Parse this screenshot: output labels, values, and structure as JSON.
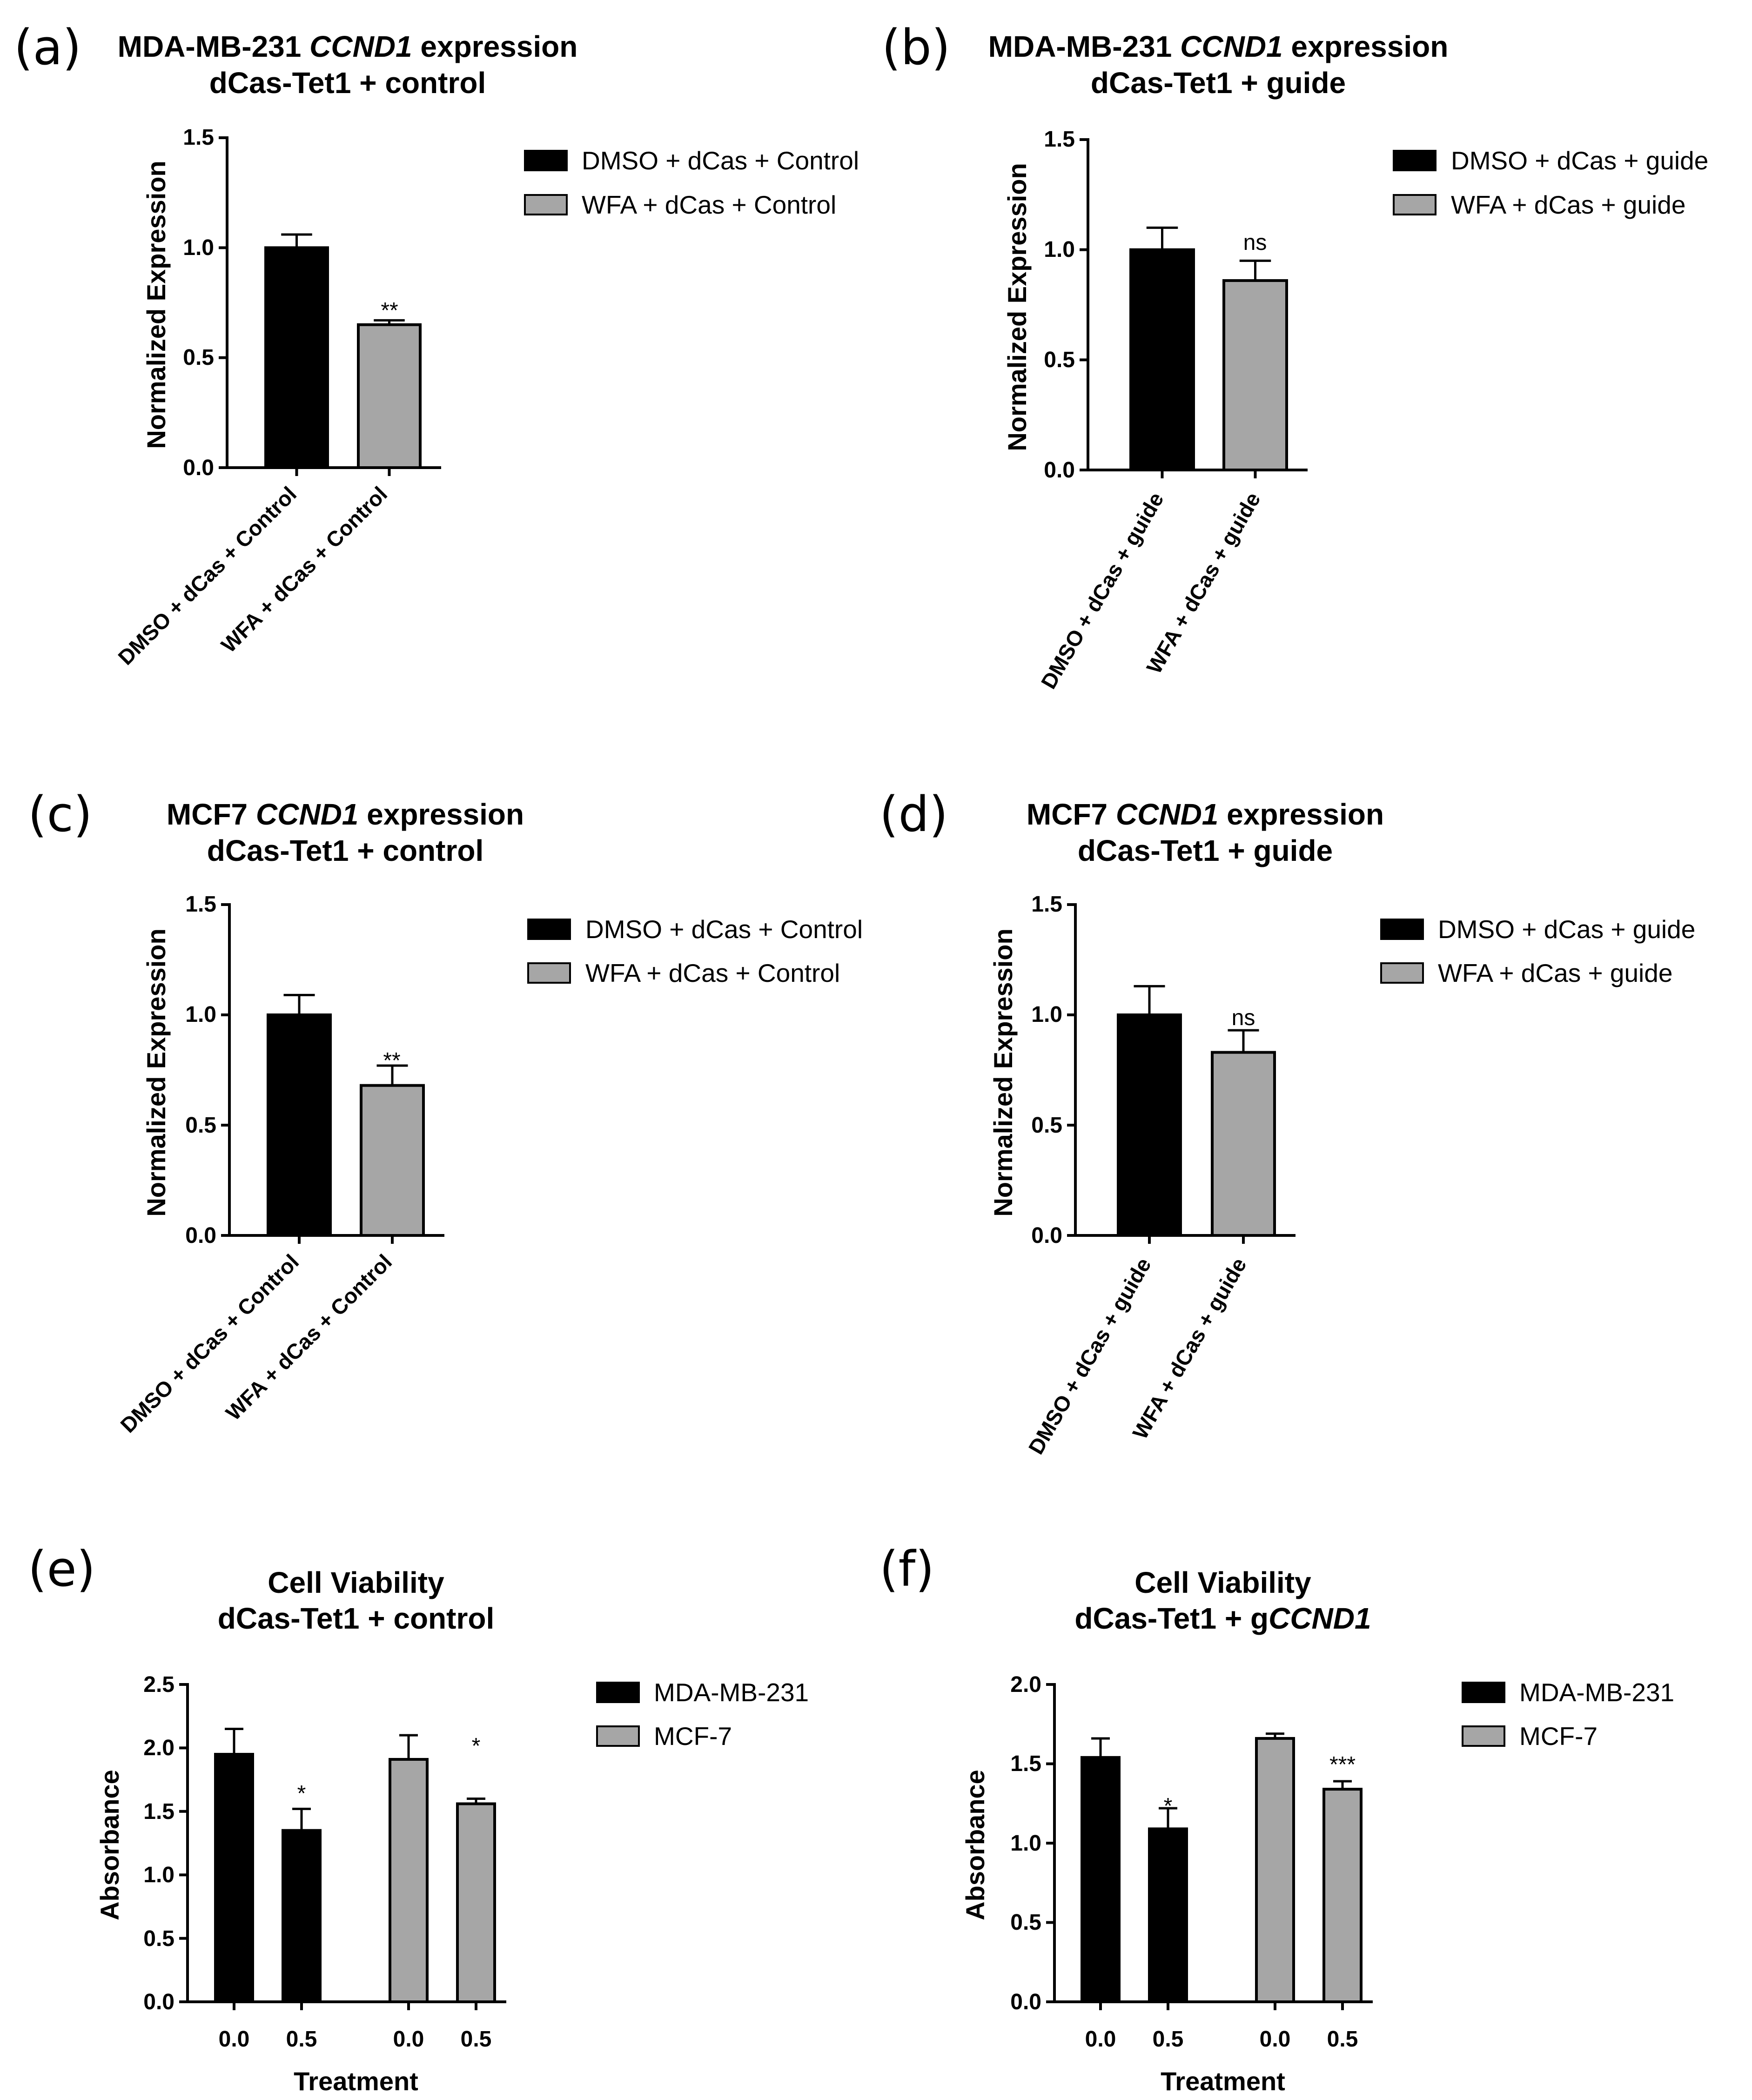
{
  "colors": {
    "dmso": "#000000",
    "wfa": "#a6a6a6",
    "outline": "#000000"
  },
  "panels": [
    {
      "letter": "(a)",
      "title_line1": {
        "before": "MDA-MB-231 ",
        "italic": "CCND1",
        "after": " expression"
      },
      "title_line2": "dCas-Tet1 + control",
      "ylabel": "Normalized Expression",
      "legend": [
        "DMSO + dCas + Control",
        "WFA + dCas + Control"
      ],
      "tick_labels": [
        "0.0",
        "0.5",
        "1.0",
        "1.5"
      ],
      "category_labels": [
        "DMSO + dCas + Control",
        "WFA + dCas + Control"
      ],
      "significance": [
        "",
        "**"
      ]
    },
    {
      "letter": "(b)",
      "title_line1": {
        "before": "MDA-MB-231 ",
        "italic": "CCND1",
        "after": " expression"
      },
      "title_line2": "dCas-Tet1 + guide",
      "ylabel": "Normalized Expression",
      "legend": [
        "DMSO + dCas + guide",
        "WFA + dCas + guide"
      ],
      "tick_labels": [
        "0.0",
        "0.5",
        "1.0",
        "1.5"
      ],
      "category_labels": [
        "DMSO + dCas + guide",
        "WFA + dCas + guide"
      ],
      "significance": [
        "",
        "ns"
      ]
    },
    {
      "letter": "(c)",
      "title_line1": {
        "before": "MCF7 ",
        "italic": "CCND1",
        "after": " expression"
      },
      "title_line2": "dCas-Tet1 + control",
      "ylabel": "Normalized Expression",
      "legend": [
        "DMSO + dCas + Control",
        "WFA + dCas + Control"
      ],
      "tick_labels": [
        "0.0",
        "0.5",
        "1.0",
        "1.5"
      ],
      "category_labels": [
        "DMSO + dCas + Control",
        "WFA + dCas + Control"
      ],
      "significance": [
        "",
        "**"
      ]
    },
    {
      "letter": "(d)",
      "title_line1": {
        "before": "MCF7 ",
        "italic": "CCND1",
        "after": " expression"
      },
      "title_line2": "dCas-Tet1 + guide",
      "ylabel": "Normalized Expression",
      "legend": [
        "DMSO + dCas + guide",
        "WFA + dCas + guide"
      ],
      "tick_labels": [
        "0.0",
        "0.5",
        "1.0",
        "1.5"
      ],
      "category_labels": [
        "DMSO + dCas + guide",
        "WFA + dCas + guide"
      ],
      "significance": [
        "",
        "ns"
      ]
    },
    {
      "letter": "(e)",
      "title_line1": {
        "before": "Cell Viability",
        "italic": "",
        "after": ""
      },
      "title_line2": {
        "before": "dCas-Tet1 + control",
        "italic": ""
      },
      "ylabel": "Absorbance",
      "xlabel": "Treatment",
      "legend": [
        "MDA-MB-231",
        "MCF-7"
      ],
      "tick_labels": [
        "0.0",
        "0.5",
        "1.0",
        "1.5",
        "2.0",
        "2.5"
      ],
      "category_labels": [
        "0.0",
        "0.5",
        "0.0",
        "0.5"
      ],
      "significance": [
        "",
        "*",
        "",
        "*"
      ]
    },
    {
      "letter": "(f)",
      "title_line1": {
        "before": "Cell Viability",
        "italic": "",
        "after": ""
      },
      "title_line2": {
        "before": "dCas-Tet1 + g",
        "italic": "CCND1"
      },
      "ylabel": "Absorbance",
      "xlabel": "Treatment",
      "legend": [
        "MDA-MB-231",
        "MCF-7"
      ],
      "tick_labels": [
        "0.0",
        "0.5",
        "1.0",
        "1.5",
        "2.0"
      ],
      "category_labels": [
        "0.0",
        "0.5",
        "0.0",
        "0.5"
      ],
      "significance": [
        "",
        "*",
        "",
        "***"
      ]
    }
  ],
  "chart_data": [
    {
      "type": "bar",
      "panel": "a",
      "title": "MDA-MB-231 CCND1 expression dCas-Tet1 + control",
      "xlabel": "",
      "ylabel": "Normalized Expression",
      "ylim": [
        0,
        1.5
      ],
      "yticks": [
        0.0,
        0.5,
        1.0,
        1.5
      ],
      "categories": [
        "DMSO + dCas + Control",
        "WFA + dCas + Control"
      ],
      "values": [
        1.0,
        0.65
      ],
      "errors": [
        0.06,
        0.02
      ],
      "bar_colors": [
        "#000000",
        "#a6a6a6"
      ],
      "annotations": [
        "",
        "**"
      ],
      "legend": [
        "DMSO + dCas + Control",
        "WFA + dCas + Control"
      ],
      "legend_position": "right"
    },
    {
      "type": "bar",
      "panel": "b",
      "title": "MDA-MB-231 CCND1 expression dCas-Tet1 + guide",
      "xlabel": "",
      "ylabel": "Normalized Expression",
      "ylim": [
        0,
        1.5
      ],
      "yticks": [
        0.0,
        0.5,
        1.0,
        1.5
      ],
      "categories": [
        "DMSO + dCas + guide",
        "WFA + dCas + guide"
      ],
      "values": [
        1.0,
        0.86
      ],
      "errors": [
        0.1,
        0.09
      ],
      "bar_colors": [
        "#000000",
        "#a6a6a6"
      ],
      "annotations": [
        "",
        "ns"
      ],
      "legend": [
        "DMSO + dCas + guide",
        "WFA + dCas + guide"
      ],
      "legend_position": "right"
    },
    {
      "type": "bar",
      "panel": "c",
      "title": "MCF7 CCND1 expression dCas-Tet1 + control",
      "xlabel": "",
      "ylabel": "Normalized Expression",
      "ylim": [
        0,
        1.5
      ],
      "yticks": [
        0.0,
        0.5,
        1.0,
        1.5
      ],
      "categories": [
        "DMSO + dCas + Control",
        "WFA + dCas + Control"
      ],
      "values": [
        1.0,
        0.68
      ],
      "errors": [
        0.09,
        0.09
      ],
      "bar_colors": [
        "#000000",
        "#a6a6a6"
      ],
      "annotations": [
        "",
        "**"
      ],
      "legend": [
        "DMSO + dCas + Control",
        "WFA + dCas + Control"
      ],
      "legend_position": "right"
    },
    {
      "type": "bar",
      "panel": "d",
      "title": "MCF7 CCND1 expression dCas-Tet1 + guide",
      "xlabel": "",
      "ylabel": "Normalized Expression",
      "ylim": [
        0,
        1.5
      ],
      "yticks": [
        0.0,
        0.5,
        1.0,
        1.5
      ],
      "categories": [
        "DMSO + dCas + guide",
        "WFA + dCas + guide"
      ],
      "values": [
        1.0,
        0.83
      ],
      "errors": [
        0.13,
        0.1
      ],
      "bar_colors": [
        "#000000",
        "#a6a6a6"
      ],
      "annotations": [
        "",
        "ns"
      ],
      "legend": [
        "DMSO + dCas + guide",
        "WFA + dCas + guide"
      ],
      "legend_position": "right"
    },
    {
      "type": "bar",
      "panel": "e",
      "title": "Cell Viability dCas-Tet1 + control",
      "xlabel": "Treatment",
      "ylabel": "Absorbance",
      "ylim": [
        0,
        2.5
      ],
      "yticks": [
        0.0,
        0.5,
        1.0,
        1.5,
        2.0,
        2.5
      ],
      "categories": [
        "0.0",
        "0.5",
        "0.0",
        "0.5"
      ],
      "groups": [
        "MDA-MB-231",
        "MDA-MB-231",
        "MCF-7",
        "MCF-7"
      ],
      "values": [
        1.95,
        1.35,
        1.91,
        1.56
      ],
      "errors": [
        0.2,
        0.17,
        0.19,
        0.04
      ],
      "bar_colors": [
        "#000000",
        "#000000",
        "#a6a6a6",
        "#a6a6a6"
      ],
      "annotations": [
        "",
        "*",
        "",
        "*"
      ],
      "legend": [
        "MDA-MB-231",
        "MCF-7"
      ],
      "legend_position": "right"
    },
    {
      "type": "bar",
      "panel": "f",
      "title": "Cell Viability dCas-Tet1 + gCCND1",
      "xlabel": "Treatment",
      "ylabel": "Absorbance",
      "ylim": [
        0,
        2.0
      ],
      "yticks": [
        0.0,
        0.5,
        1.0,
        1.5,
        2.0
      ],
      "categories": [
        "0.0",
        "0.5",
        "0.0",
        "0.5"
      ],
      "groups": [
        "MDA-MB-231",
        "MDA-MB-231",
        "MCF-7",
        "MCF-7"
      ],
      "values": [
        1.54,
        1.09,
        1.66,
        1.34
      ],
      "errors": [
        0.12,
        0.13,
        0.03,
        0.05
      ],
      "bar_colors": [
        "#000000",
        "#000000",
        "#a6a6a6",
        "#a6a6a6"
      ],
      "annotations": [
        "",
        "*",
        "",
        "***"
      ],
      "legend": [
        "MDA-MB-231",
        "MCF-7"
      ],
      "legend_position": "right"
    }
  ]
}
